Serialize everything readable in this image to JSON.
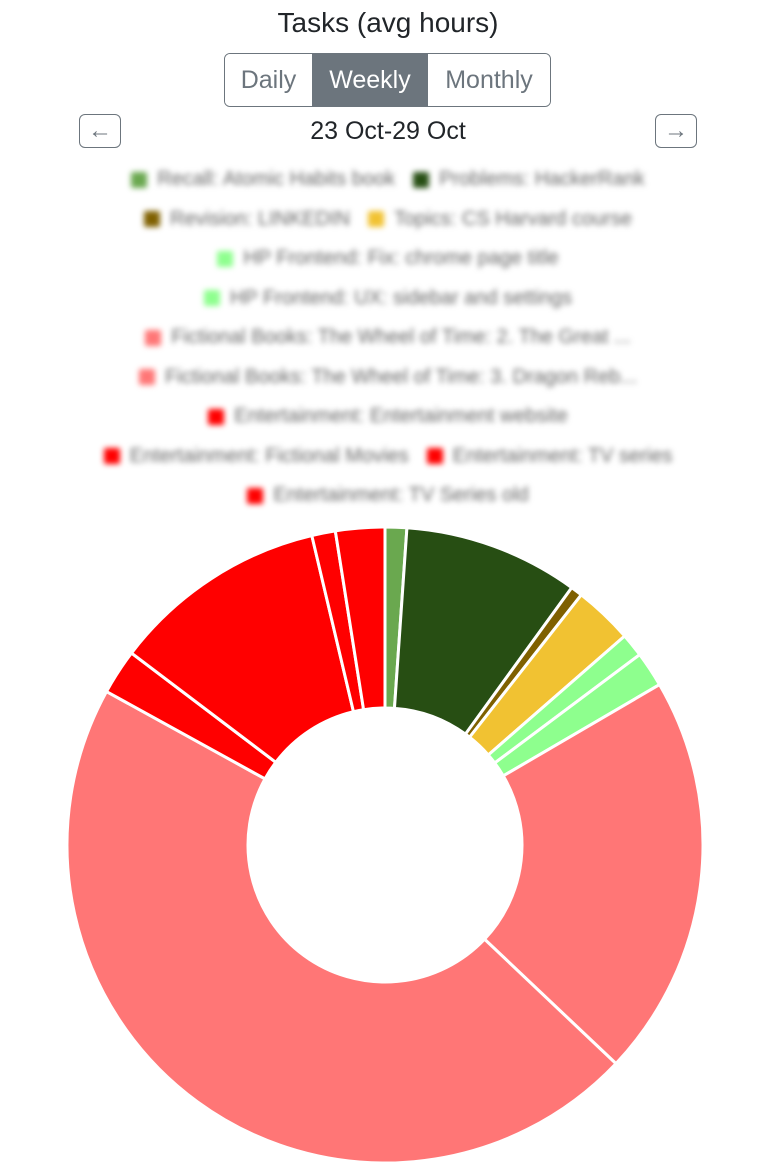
{
  "header": {
    "title": "Tasks (avg hours)"
  },
  "period_selector": {
    "daily": "Daily",
    "weekly": "Weekly",
    "monthly": "Monthly",
    "selected": "Weekly"
  },
  "navigation": {
    "prev_icon": "arrow-left-icon",
    "prev_glyph": "←",
    "next_icon": "arrow-right-icon",
    "next_glyph": "→",
    "range": "23 Oct-29 Oct"
  },
  "colors": {
    "button_gray": "#6c757d",
    "text": "#212529",
    "legend_text": "#666666"
  },
  "chart_data": {
    "type": "pie",
    "donut": true,
    "legend_position": "top",
    "series": [
      {
        "name": "Recall: Atomic Habits book",
        "value": 1.1,
        "color": "#6aa84f"
      },
      {
        "name": "Problems: HackerRank",
        "value": 8.9,
        "color": "#274e13"
      },
      {
        "name": "Revision: LINKEDIN",
        "value": 0.6,
        "color": "#7f6000"
      },
      {
        "name": "Topics: CS Harvard course",
        "value": 3.0,
        "color": "#f1c232"
      },
      {
        "name": "HP Frontend: Fix: chrome page title",
        "value": 1.2,
        "color": "#8eff8e"
      },
      {
        "name": "HP Frontend: UX: sidebar and settings",
        "value": 1.8,
        "color": "#8eff8e"
      },
      {
        "name": "Fictional Books: The Wheel of Time: 2. The Great ...",
        "value": 20.5,
        "color": "#ff7676"
      },
      {
        "name": "Fictional Books: The Wheel of Time: 3. Dragon Reb...",
        "value": 46.0,
        "color": "#ff7676"
      },
      {
        "name": "Entertainment: Entertainment website",
        "value": 2.3,
        "color": "#ff0000"
      },
      {
        "name": "Entertainment: Fictional Movies",
        "value": 11.0,
        "color": "#ff0000"
      },
      {
        "name": "Entertainment: TV series",
        "value": 1.2,
        "color": "#ff0000"
      },
      {
        "name": "Entertainment: TV Series old",
        "value": 2.5,
        "color": "#ff0000"
      }
    ],
    "legend_rows": [
      [
        0,
        1
      ],
      [
        2,
        3
      ],
      [
        4
      ],
      [
        5
      ],
      [
        6
      ],
      [
        7
      ],
      [
        8
      ],
      [
        9,
        10
      ],
      [
        11
      ]
    ]
  }
}
